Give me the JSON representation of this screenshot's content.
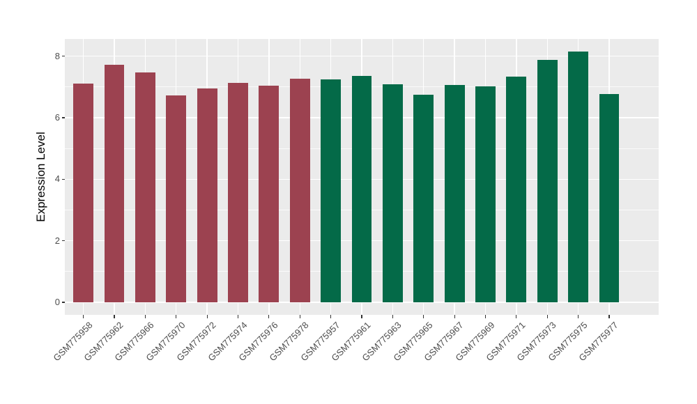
{
  "chart_data": {
    "type": "bar",
    "title": "",
    "xlabel": "",
    "ylabel": "Expression Level",
    "ylim": [
      0,
      8.56
    ],
    "yticks": [
      0,
      2,
      4,
      6,
      8
    ],
    "yticks_minor": [
      1,
      3,
      5,
      7
    ],
    "grid": "on",
    "legend_position": "none",
    "categories": [
      "GSM775958",
      "GSM775962",
      "GSM775966",
      "GSM775970",
      "GSM775972",
      "GSM775974",
      "GSM775976",
      "GSM775978",
      "GSM775957",
      "GSM775961",
      "GSM775963",
      "GSM775965",
      "GSM775967",
      "GSM775969",
      "GSM775971",
      "GSM775973",
      "GSM775975",
      "GSM775977"
    ],
    "values": [
      7.1,
      7.73,
      7.48,
      6.72,
      6.96,
      7.12,
      7.03,
      7.26,
      7.25,
      7.36,
      7.09,
      6.74,
      7.07,
      7.02,
      7.33,
      7.88,
      8.15,
      6.77
    ],
    "bar_colors": [
      "#9C4250",
      "#9C4250",
      "#9C4250",
      "#9C4250",
      "#9C4250",
      "#9C4250",
      "#9C4250",
      "#9C4250",
      "#046A48",
      "#046A48",
      "#046A48",
      "#046A48",
      "#046A48",
      "#046A48",
      "#046A48",
      "#046A48",
      "#046A48",
      "#046A48"
    ],
    "colors": {
      "group_red": "#9C4250",
      "group_green": "#046A48",
      "panel_background": "#EBEBEB",
      "figure_background": "#FFFFFF",
      "gridline": "#FFFFFF",
      "axis_text": "#4D4D4D",
      "axis_title": "#000000",
      "tick_mark": "#333333"
    }
  }
}
